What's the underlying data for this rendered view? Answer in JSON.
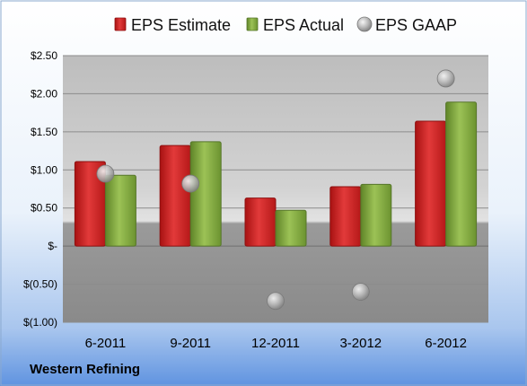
{
  "chart_data": {
    "type": "bar",
    "categories": [
      "6-2011",
      "9-2011",
      "12-2011",
      "3-2012",
      "6-2012"
    ],
    "series": [
      {
        "name": "EPS Estimate",
        "kind": "bar",
        "color": "#d21f1f",
        "values": [
          1.11,
          1.32,
          0.63,
          0.78,
          1.64
        ]
      },
      {
        "name": "EPS Actual",
        "kind": "bar",
        "color": "#7fa339",
        "values": [
          0.93,
          1.37,
          0.47,
          0.81,
          1.89
        ]
      },
      {
        "name": "EPS GAAP",
        "kind": "scatter",
        "color": "#a9a9a9",
        "values": [
          0.95,
          0.82,
          -0.72,
          -0.6,
          2.2
        ]
      }
    ],
    "y_ticks": [
      "$(1.00)",
      "$(0.50)",
      "$-",
      "$0.50",
      "$1.00",
      "$1.50",
      "$2.00",
      "$2.50"
    ],
    "y_tick_values": [
      -1.0,
      -0.5,
      0.0,
      0.5,
      1.0,
      1.5,
      2.0,
      2.5
    ],
    "ylim": [
      -1.0,
      2.5
    ],
    "grid": true,
    "legend_position": "top",
    "company": "Western Refining"
  }
}
